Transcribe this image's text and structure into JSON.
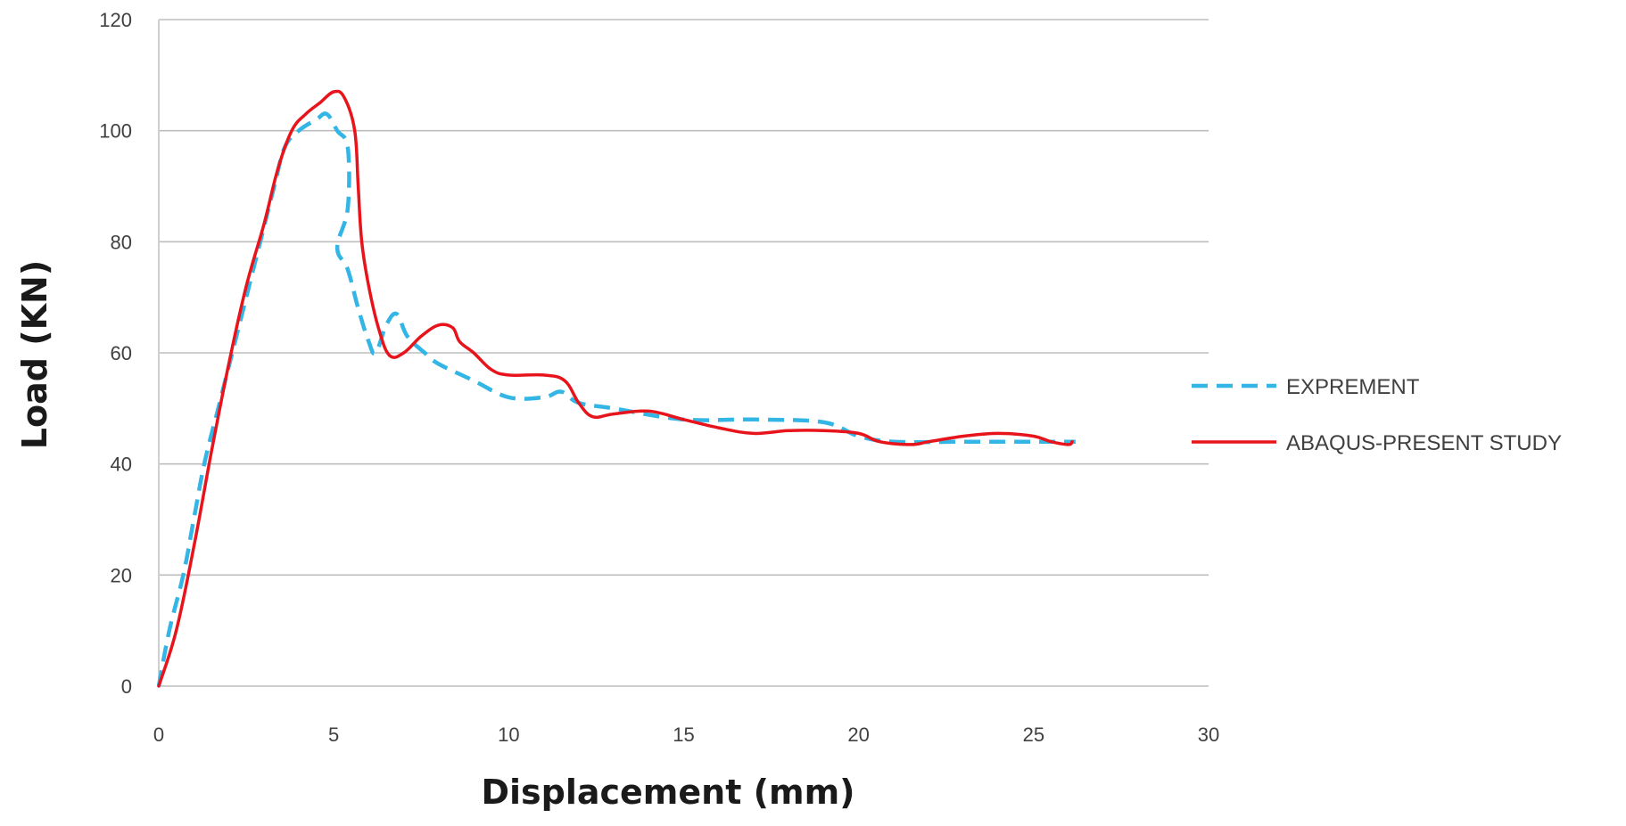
{
  "chart_data": {
    "type": "line",
    "title": "",
    "xlabel": "Displacement (mm)",
    "ylabel": "Load (KN)",
    "xlim": [
      0,
      30
    ],
    "ylim": [
      0,
      120
    ],
    "xticks": [
      "0",
      "5",
      "10",
      "15",
      "20",
      "25",
      "30"
    ],
    "yticks": [
      "0",
      "20",
      "40",
      "60",
      "80",
      "100",
      "120"
    ],
    "grid": "horizontal",
    "legend_position": "right",
    "series": [
      {
        "name": "EXPREMENT",
        "color": "#33b5e5",
        "dash": "dashed",
        "points": [
          [
            0,
            0
          ],
          [
            0.3,
            10
          ],
          [
            0.7,
            20
          ],
          [
            1.0,
            30
          ],
          [
            1.3,
            40
          ],
          [
            1.7,
            50
          ],
          [
            2.1,
            60
          ],
          [
            2.5,
            70
          ],
          [
            2.9,
            80
          ],
          [
            3.3,
            90
          ],
          [
            3.6,
            97
          ],
          [
            4.0,
            100
          ],
          [
            4.5,
            102
          ],
          [
            4.8,
            103
          ],
          [
            5.1,
            100
          ],
          [
            5.4,
            97
          ],
          [
            5.4,
            86
          ],
          [
            5.1,
            79
          ],
          [
            5.4,
            75
          ],
          [
            5.7,
            68
          ],
          [
            6.0,
            62
          ],
          [
            6.2,
            60
          ],
          [
            6.5,
            65
          ],
          [
            6.8,
            67
          ],
          [
            7.1,
            63
          ],
          [
            7.6,
            60
          ],
          [
            8.0,
            58
          ],
          [
            9.0,
            55
          ],
          [
            10.0,
            52
          ],
          [
            11.0,
            52
          ],
          [
            11.5,
            53
          ],
          [
            12.0,
            51
          ],
          [
            13.0,
            50
          ],
          [
            15.0,
            48
          ],
          [
            17.0,
            48
          ],
          [
            19.0,
            47.5
          ],
          [
            20.0,
            45
          ],
          [
            21.0,
            44
          ],
          [
            23.0,
            44
          ],
          [
            25.0,
            44
          ],
          [
            26.2,
            44
          ]
        ]
      },
      {
        "name": "ABAQUS-PRESENT STUDY",
        "color": "#e8141c",
        "dash": "solid",
        "points": [
          [
            0,
            0
          ],
          [
            0.5,
            10
          ],
          [
            1.0,
            25
          ],
          [
            1.5,
            42
          ],
          [
            2.0,
            58
          ],
          [
            2.5,
            72
          ],
          [
            3.0,
            83
          ],
          [
            3.4,
            93
          ],
          [
            3.8,
            100
          ],
          [
            4.2,
            103
          ],
          [
            4.6,
            105
          ],
          [
            5.0,
            107
          ],
          [
            5.3,
            106
          ],
          [
            5.6,
            100
          ],
          [
            5.7,
            90
          ],
          [
            5.8,
            80
          ],
          [
            6.0,
            72
          ],
          [
            6.3,
            64
          ],
          [
            6.6,
            59.5
          ],
          [
            7.0,
            60
          ],
          [
            7.5,
            63
          ],
          [
            8.0,
            65
          ],
          [
            8.4,
            64.5
          ],
          [
            8.6,
            62
          ],
          [
            9.0,
            60
          ],
          [
            9.5,
            57
          ],
          [
            10.0,
            56
          ],
          [
            11.0,
            56
          ],
          [
            11.6,
            55
          ],
          [
            12.0,
            51
          ],
          [
            12.4,
            48.5
          ],
          [
            13.0,
            49
          ],
          [
            14.0,
            49.5
          ],
          [
            15.0,
            48
          ],
          [
            16.0,
            46.5
          ],
          [
            17.0,
            45.5
          ],
          [
            18.0,
            46
          ],
          [
            19.0,
            46
          ],
          [
            20.0,
            45.5
          ],
          [
            20.6,
            44
          ],
          [
            21.5,
            43.5
          ],
          [
            22.0,
            44
          ],
          [
            23.0,
            45
          ],
          [
            24.0,
            45.5
          ],
          [
            25.0,
            45
          ],
          [
            25.5,
            44
          ],
          [
            26.0,
            43.5
          ],
          [
            26.1,
            44
          ]
        ]
      }
    ]
  }
}
